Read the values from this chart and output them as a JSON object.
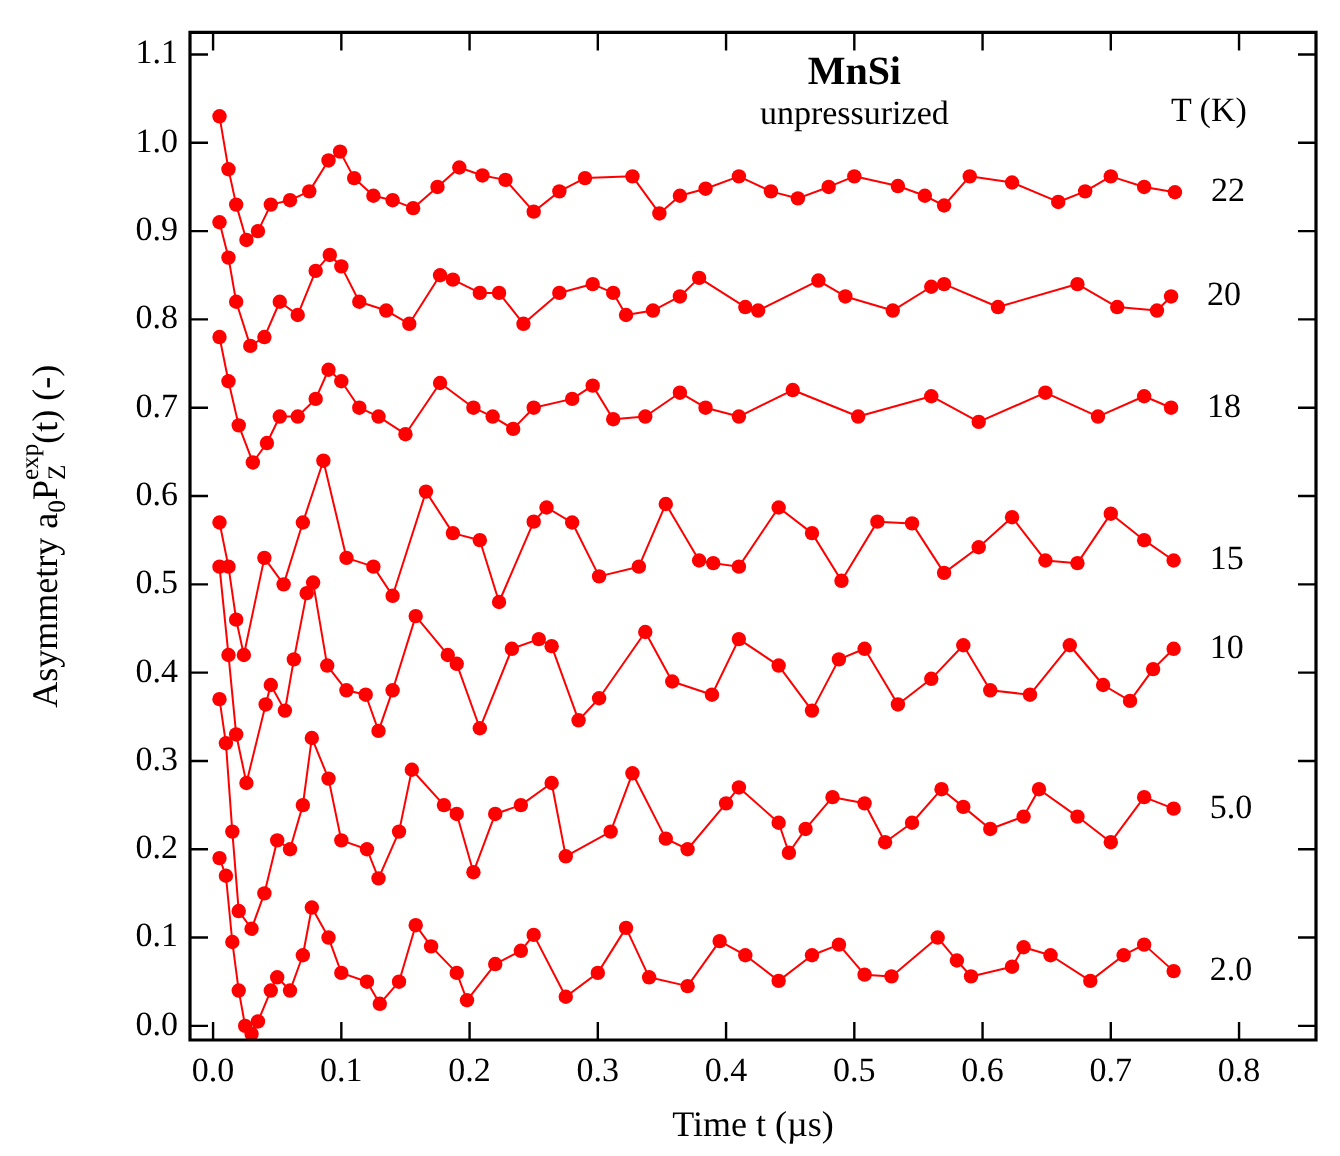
{
  "chart_data": {
    "type": "line",
    "title": "MnSi",
    "subtitle": "unpressurized",
    "xlabel": "Time t (µs)",
    "ylabel": "Asymmetry a$_{0}$P$_{Z}$$^{exp}$(t) (-)",
    "legend_title": "T (K)",
    "marker": "circle",
    "xlim": [
      -0.018,
      0.86
    ],
    "ylim": [
      -0.016,
      1.125
    ],
    "xticks": [
      {
        "value": 0,
        "label": "0.0"
      },
      0.1,
      0.2,
      0.3,
      0.4,
      0.5,
      0.6,
      0.7,
      0.8
    ],
    "yticks": [
      {
        "value": 0,
        "label": "0.0"
      },
      0.1,
      0.2,
      0.3,
      0.4,
      0.5,
      0.6,
      0.7,
      0.8,
      0.9,
      {
        "value": 1,
        "label": "1.0"
      },
      1.1
    ],
    "series": [
      {
        "name": "22",
        "color": "#ff0000",
        "x": [
          0.005,
          0.012,
          0.018,
          0.026,
          0.035,
          0.045,
          0.06,
          0.075,
          0.09,
          0.099,
          0.11,
          0.125,
          0.14,
          0.156,
          0.175,
          0.192,
          0.21,
          0.228,
          0.25,
          0.27,
          0.29,
          0.327,
          0.348,
          0.364,
          0.384,
          0.41,
          0.435,
          0.456,
          0.48,
          0.5,
          0.534,
          0.555,
          0.57,
          0.59,
          0.623,
          0.659,
          0.68,
          0.7,
          0.726,
          0.75
        ],
        "values": [
          1.03,
          0.97,
          0.93,
          0.89,
          0.9,
          0.93,
          0.935,
          0.945,
          0.98,
          0.99,
          0.96,
          0.94,
          0.935,
          0.926,
          0.95,
          0.972,
          0.963,
          0.958,
          0.922,
          0.945,
          0.96,
          0.962,
          0.92,
          0.94,
          0.948,
          0.962,
          0.945,
          0.937,
          0.95,
          0.962,
          0.951,
          0.94,
          0.929,
          0.962,
          0.955,
          0.933,
          0.945,
          0.962,
          0.95,
          0.944
        ]
      },
      {
        "name": "20",
        "color": "#ff0000",
        "x": [
          0.005,
          0.012,
          0.018,
          0.029,
          0.04,
          0.052,
          0.066,
          0.08,
          0.091,
          0.1,
          0.114,
          0.135,
          0.153,
          0.177,
          0.187,
          0.208,
          0.223,
          0.242,
          0.27,
          0.296,
          0.312,
          0.322,
          0.343,
          0.364,
          0.379,
          0.415,
          0.425,
          0.472,
          0.493,
          0.53,
          0.56,
          0.57,
          0.612,
          0.674,
          0.705,
          0.736,
          0.747
        ],
        "values": [
          0.91,
          0.87,
          0.82,
          0.77,
          0.78,
          0.82,
          0.805,
          0.855,
          0.873,
          0.86,
          0.82,
          0.81,
          0.795,
          0.85,
          0.845,
          0.83,
          0.83,
          0.795,
          0.83,
          0.84,
          0.83,
          0.805,
          0.81,
          0.826,
          0.847,
          0.814,
          0.81,
          0.844,
          0.826,
          0.81,
          0.837,
          0.84,
          0.814,
          0.84,
          0.814,
          0.81,
          0.826
        ]
      },
      {
        "name": "18",
        "color": "#ff0000",
        "x": [
          0.005,
          0.012,
          0.02,
          0.031,
          0.042,
          0.052,
          0.066,
          0.08,
          0.09,
          0.1,
          0.114,
          0.129,
          0.15,
          0.177,
          0.203,
          0.218,
          0.234,
          0.25,
          0.28,
          0.296,
          0.312,
          0.337,
          0.364,
          0.384,
          0.41,
          0.452,
          0.503,
          0.56,
          0.597,
          0.649,
          0.69,
          0.726,
          0.747
        ],
        "values": [
          0.78,
          0.73,
          0.68,
          0.638,
          0.66,
          0.69,
          0.69,
          0.71,
          0.743,
          0.73,
          0.7,
          0.69,
          0.67,
          0.728,
          0.7,
          0.69,
          0.676,
          0.7,
          0.71,
          0.725,
          0.687,
          0.69,
          0.717,
          0.7,
          0.69,
          0.72,
          0.69,
          0.713,
          0.684,
          0.717,
          0.69,
          0.713,
          0.7
        ]
      },
      {
        "name": "15",
        "color": "#ff0000",
        "x": [
          0.005,
          0.012,
          0.018,
          0.024,
          0.04,
          0.055,
          0.07,
          0.086,
          0.104,
          0.125,
          0.14,
          0.166,
          0.187,
          0.208,
          0.223,
          0.25,
          0.26,
          0.28,
          0.301,
          0.332,
          0.353,
          0.379,
          0.39,
          0.41,
          0.441,
          0.467,
          0.49,
          0.518,
          0.545,
          0.57,
          0.597,
          0.623,
          0.649,
          0.674,
          0.7,
          0.726,
          0.749
        ],
        "values": [
          0.57,
          0.52,
          0.46,
          0.42,
          0.53,
          0.5,
          0.57,
          0.64,
          0.53,
          0.52,
          0.487,
          0.605,
          0.558,
          0.55,
          0.48,
          0.571,
          0.587,
          0.57,
          0.509,
          0.52,
          0.591,
          0.527,
          0.524,
          0.52,
          0.587,
          0.558,
          0.504,
          0.571,
          0.569,
          0.513,
          0.542,
          0.576,
          0.527,
          0.524,
          0.58,
          0.55,
          0.527
        ]
      },
      {
        "name": "10",
        "color": "#ff0000",
        "x": [
          0.005,
          0.012,
          0.018,
          0.026,
          0.041,
          0.045,
          0.056,
          0.063,
          0.073,
          0.078,
          0.089,
          0.104,
          0.119,
          0.129,
          0.14,
          0.158,
          0.183,
          0.19,
          0.208,
          0.233,
          0.254,
          0.264,
          0.285,
          0.301,
          0.337,
          0.358,
          0.389,
          0.41,
          0.441,
          0.467,
          0.488,
          0.508,
          0.534,
          0.56,
          0.585,
          0.606,
          0.637,
          0.668,
          0.694,
          0.715,
          0.733,
          0.749
        ],
        "values": [
          0.52,
          0.42,
          0.33,
          0.275,
          0.364,
          0.386,
          0.357,
          0.415,
          0.49,
          0.502,
          0.408,
          0.38,
          0.375,
          0.334,
          0.38,
          0.464,
          0.42,
          0.41,
          0.337,
          0.427,
          0.438,
          0.43,
          0.346,
          0.371,
          0.446,
          0.39,
          0.375,
          0.438,
          0.408,
          0.357,
          0.415,
          0.427,
          0.364,
          0.393,
          0.431,
          0.38,
          0.375,
          0.431,
          0.386,
          0.368,
          0.404,
          0.427
        ]
      },
      {
        "name": "5.0",
        "color": "#ff0000",
        "x": [
          0.005,
          0.01,
          0.015,
          0.02,
          0.03,
          0.04,
          0.05,
          0.06,
          0.07,
          0.077,
          0.09,
          0.1,
          0.12,
          0.129,
          0.145,
          0.155,
          0.18,
          0.19,
          0.203,
          0.22,
          0.24,
          0.264,
          0.275,
          0.31,
          0.327,
          0.353,
          0.37,
          0.4,
          0.41,
          0.441,
          0.449,
          0.462,
          0.483,
          0.508,
          0.524,
          0.545,
          0.568,
          0.585,
          0.606,
          0.632,
          0.644,
          0.674,
          0.7,
          0.726,
          0.749
        ],
        "values": [
          0.37,
          0.32,
          0.22,
          0.13,
          0.11,
          0.15,
          0.21,
          0.2,
          0.25,
          0.326,
          0.28,
          0.21,
          0.2,
          0.167,
          0.22,
          0.29,
          0.25,
          0.24,
          0.174,
          0.24,
          0.25,
          0.275,
          0.192,
          0.22,
          0.286,
          0.212,
          0.2,
          0.252,
          0.27,
          0.23,
          0.196,
          0.223,
          0.259,
          0.252,
          0.208,
          0.23,
          0.268,
          0.248,
          0.223,
          0.237,
          0.268,
          0.237,
          0.208,
          0.259,
          0.246
        ]
      },
      {
        "name": "2.0",
        "color": "#ff0000",
        "x": [
          0.005,
          0.01,
          0.015,
          0.02,
          0.025,
          0.03,
          0.035,
          0.045,
          0.05,
          0.06,
          0.07,
          0.077,
          0.09,
          0.1,
          0.12,
          0.13,
          0.145,
          0.158,
          0.17,
          0.19,
          0.198,
          0.22,
          0.24,
          0.25,
          0.275,
          0.3,
          0.322,
          0.34,
          0.37,
          0.395,
          0.415,
          0.441,
          0.467,
          0.488,
          0.508,
          0.529,
          0.565,
          0.58,
          0.591,
          0.623,
          0.632,
          0.653,
          0.684,
          0.71,
          0.726,
          0.749
        ],
        "values": [
          0.19,
          0.17,
          0.095,
          0.04,
          0.0,
          -0.009,
          0.005,
          0.04,
          0.055,
          0.04,
          0.08,
          0.134,
          0.1,
          0.06,
          0.05,
          0.025,
          0.05,
          0.114,
          0.09,
          0.06,
          0.029,
          0.07,
          0.085,
          0.103,
          0.033,
          0.06,
          0.111,
          0.055,
          0.045,
          0.096,
          0.08,
          0.051,
          0.08,
          0.092,
          0.058,
          0.056,
          0.1,
          0.074,
          0.056,
          0.067,
          0.089,
          0.08,
          0.051,
          0.08,
          0.092,
          0.062
        ]
      }
    ]
  }
}
